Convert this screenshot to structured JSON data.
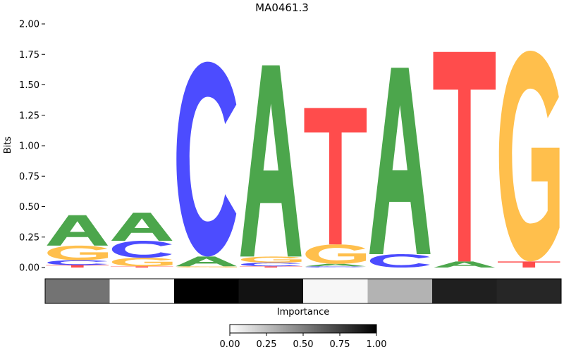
{
  "chart_data": {
    "type": "sequence-logo",
    "title": "MA0461.3",
    "ylabel": "Bits",
    "ylim": [
      0,
      2.0
    ],
    "yticks": [
      "0.00",
      "0.25",
      "0.50",
      "0.75",
      "1.00",
      "1.25",
      "1.50",
      "1.75",
      "2.00"
    ],
    "yticks_values": [
      0,
      0.25,
      0.5,
      0.75,
      1.0,
      1.25,
      1.5,
      1.75,
      2.0
    ],
    "colors": {
      "A": "#4ca64c",
      "C": "#4c4cff",
      "G": "#ffbf4c",
      "T": "#ff4c4c"
    },
    "positions": [
      {
        "stack": [
          {
            "base": "T",
            "bits": 0.02
          },
          {
            "base": "C",
            "bits": 0.04
          },
          {
            "base": "G",
            "bits": 0.12
          },
          {
            "base": "A",
            "bits": 0.25
          }
        ]
      },
      {
        "stack": [
          {
            "base": "T",
            "bits": 0.01
          },
          {
            "base": "G",
            "bits": 0.07
          },
          {
            "base": "C",
            "bits": 0.14
          },
          {
            "base": "A",
            "bits": 0.23
          }
        ]
      },
      {
        "stack": [
          {
            "base": "G",
            "bits": 0.01
          },
          {
            "base": "A",
            "bits": 0.08
          },
          {
            "base": "C",
            "bits": 1.6
          }
        ]
      },
      {
        "stack": [
          {
            "base": "T",
            "bits": 0.01
          },
          {
            "base": "C",
            "bits": 0.03
          },
          {
            "base": "G",
            "bits": 0.05
          },
          {
            "base": "A",
            "bits": 1.57
          }
        ]
      },
      {
        "stack": [
          {
            "base": "C",
            "bits": 0.01
          },
          {
            "base": "A",
            "bits": 0.02
          },
          {
            "base": "G",
            "bits": 0.16
          },
          {
            "base": "T",
            "bits": 1.12
          }
        ]
      },
      {
        "stack": [
          {
            "base": "C",
            "bits": 0.11
          },
          {
            "base": "A",
            "bits": 1.53
          }
        ]
      },
      {
        "stack": [
          {
            "base": "A",
            "bits": 0.05
          },
          {
            "base": "T",
            "bits": 1.72
          }
        ]
      },
      {
        "stack": [
          {
            "base": "T",
            "bits": 0.05
          },
          {
            "base": "G",
            "bits": 1.73
          }
        ]
      }
    ],
    "importance": {
      "xlabel": "Importance",
      "values": [
        0.55,
        0.0,
        1.0,
        0.93,
        0.03,
        0.3,
        0.88,
        0.85
      ],
      "colorbar_ticks": [
        "0.00",
        "0.25",
        "0.50",
        "0.75",
        "1.00"
      ],
      "colorbar_values": [
        0,
        0.25,
        0.5,
        0.75,
        1.0
      ]
    }
  }
}
